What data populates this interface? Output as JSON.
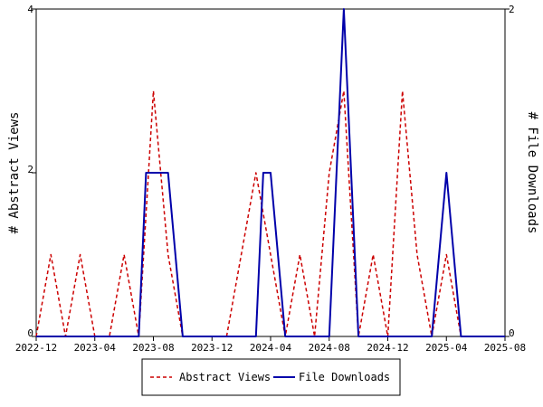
{
  "chart_data": {
    "type": "line",
    "xlabel": "",
    "ylabel": "# Abstract Views",
    "y2label": "# File Downloads",
    "ylim": [
      0,
      4
    ],
    "y2lim": [
      0,
      2
    ],
    "y_ticks": [
      "0",
      "2",
      "4"
    ],
    "y2_ticks": [
      "0",
      "2"
    ],
    "x_tick_labels": [
      "2022-12",
      "2023-04",
      "2023-08",
      "2023-12",
      "2024-04",
      "2024-08",
      "2024-12",
      "2025-04",
      "2025-08"
    ],
    "x_range_months": [
      0,
      32
    ],
    "grid": false,
    "legend_position": "bottom-center",
    "series": [
      {
        "name": "Abstract Views",
        "axis": "left",
        "color": "#cc0000",
        "style": "dashed",
        "x": [
          0,
          1,
          2,
          3,
          4,
          5,
          6,
          7,
          8,
          9,
          10,
          11,
          12,
          13,
          14,
          15,
          16,
          17,
          18,
          19,
          20,
          21,
          22,
          23,
          24,
          25,
          26,
          27,
          28,
          29,
          30,
          31,
          32
        ],
        "values": [
          0,
          1,
          0,
          1,
          0,
          0,
          1,
          0,
          3,
          1,
          0,
          0,
          0,
          0,
          1,
          2,
          1,
          0,
          1,
          0,
          2,
          3,
          0,
          1,
          0,
          3,
          1,
          0,
          1,
          0,
          0,
          0,
          0
        ]
      },
      {
        "name": "File Downloads",
        "axis": "right",
        "color": "#0000aa",
        "style": "solid",
        "x": [
          0,
          1,
          2,
          3,
          4,
          5,
          6,
          7,
          7.5,
          8,
          8.5,
          9,
          10,
          11,
          12,
          13,
          14,
          15,
          15.5,
          16,
          17,
          18,
          19,
          20,
          21,
          22,
          23,
          24,
          25,
          26,
          27,
          28,
          29,
          30,
          31,
          32
        ],
        "values": [
          0,
          0,
          0,
          0,
          0,
          0,
          0,
          0,
          1,
          1,
          1,
          1,
          0,
          0,
          0,
          0,
          0,
          0,
          1,
          1,
          0,
          0,
          0,
          0,
          2,
          0,
          0,
          0,
          0,
          0,
          0,
          1,
          0,
          0,
          0,
          0
        ]
      }
    ]
  }
}
